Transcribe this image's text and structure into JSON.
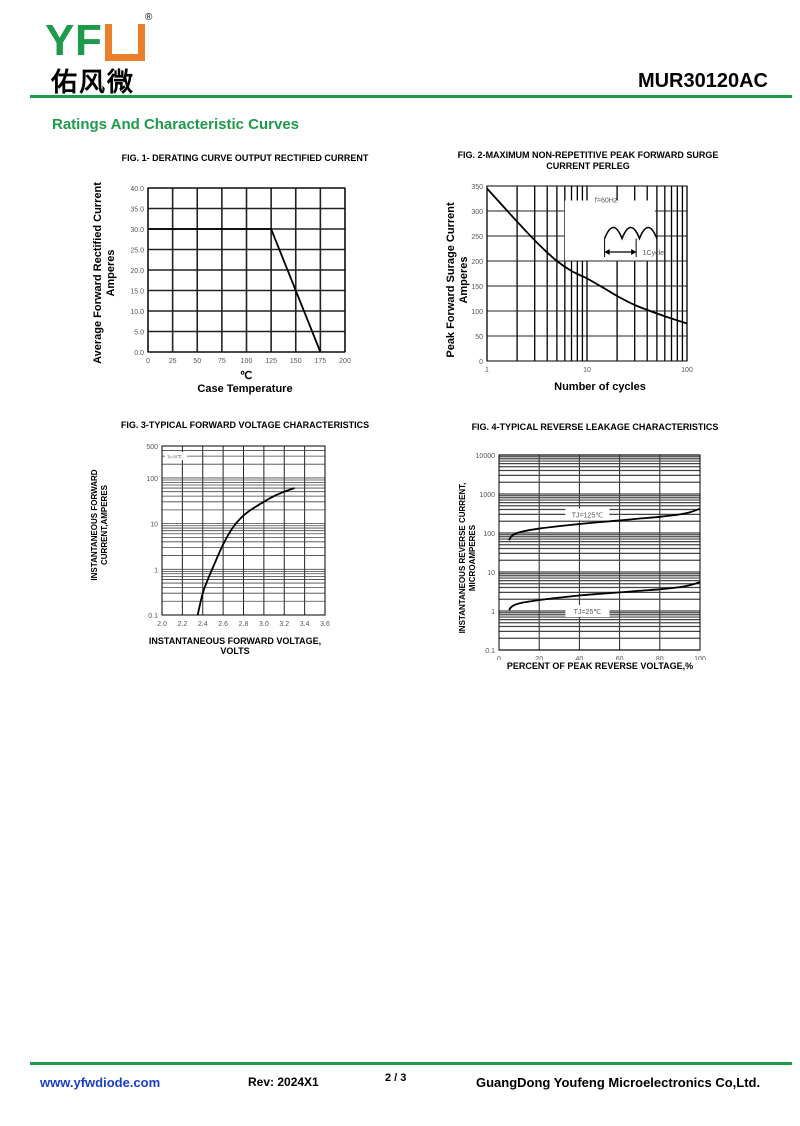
{
  "header": {
    "logo_text": "YFW",
    "logo_cn": "佑风微",
    "registered": "®",
    "part_number": "MUR30120AC",
    "brand_color": "#1e9a4a",
    "accent_color": "#ea7e2a"
  },
  "section_title": "Ratings And Characteristic Curves",
  "chart_data": [
    {
      "id": "fig1",
      "type": "line",
      "title": "FIG. 1- DERATING CURVE OUTPUT RECTIFIED CURRENT",
      "ylabel_lines": [
        "Average Forward Rectified Current",
        "Amperes"
      ],
      "xunit": "℃",
      "xlabel": "Case Temperature",
      "xscale": "linear",
      "yscale": "linear",
      "xlim": [
        0,
        200
      ],
      "ylim": [
        0,
        40
      ],
      "grid": true,
      "xticks": [
        0,
        25,
        50,
        75,
        100,
        125,
        150,
        175,
        200
      ],
      "xtick_labels": [
        "0",
        "25",
        "50",
        "75",
        "100",
        "125",
        "150",
        "175",
        "200"
      ],
      "yticks": [
        0,
        5,
        10,
        15,
        20,
        25,
        30,
        35,
        40
      ],
      "ytick_labels": [
        "0.0",
        "5.0",
        "10.0",
        "15.0",
        "20.0",
        "25.0",
        "30.0",
        "35.0",
        "40.0"
      ],
      "series": [
        {
          "x": [
            0,
            125,
            175
          ],
          "y": [
            30,
            30,
            0
          ]
        }
      ]
    },
    {
      "id": "fig2",
      "type": "line",
      "title": "FIG. 2-MAXIMUM NON-REPETITIVE PEAK FORWARD SURGE CURRENT PERLEG",
      "ylabel_lines": [
        "Peak Forward Surage Current",
        "Amperes"
      ],
      "xlabel": "Number of cycles",
      "xscale": "log",
      "yscale": "linear",
      "xlim": [
        1,
        100
      ],
      "ylim": [
        0,
        350
      ],
      "grid": true,
      "xticks": [
        1,
        10,
        100
      ],
      "xtick_labels": [
        "1",
        "10",
        "100"
      ],
      "yticks": [
        0,
        50,
        100,
        150,
        200,
        250,
        300,
        350
      ],
      "ytick_labels": [
        "0",
        "50",
        "100",
        "150",
        "200",
        "250",
        "300",
        "350"
      ],
      "annotations": [
        "f=60Hz",
        "1Cycle"
      ],
      "series": [
        {
          "x": [
            1,
            1.6,
            2.5,
            3.5,
            5,
            7,
            10,
            15,
            20,
            30,
            50,
            70,
            100
          ],
          "y": [
            345,
            300,
            258,
            228,
            200,
            180,
            165,
            145,
            130,
            112,
            95,
            85,
            75
          ]
        }
      ]
    },
    {
      "id": "fig3",
      "type": "line",
      "title": "FIG. 3-TYPICAL FORWARD VOLTAGE CHARACTERISTICS",
      "ylabel_lines": [
        "INSTANTANEOUS FORWARD",
        "CURRENT,AMPERES"
      ],
      "xlabel_lines": [
        "INSTANTANEOUS FORWARD VOLTAGE,",
        "VOLTS"
      ],
      "xscale": "linear",
      "yscale": "log",
      "xlim": [
        2.0,
        3.6
      ],
      "ylim": [
        0.1,
        500
      ],
      "grid": true,
      "xticks": [
        2.0,
        2.2,
        2.4,
        2.6,
        2.8,
        3.0,
        3.2,
        3.4,
        3.6
      ],
      "xtick_labels": [
        "2.0",
        "2.2",
        "2.4",
        "2.6",
        "2.8",
        "3.0",
        "3.2",
        "3.4",
        "3.6"
      ],
      "yticks": [
        0.1,
        1,
        10,
        100,
        500
      ],
      "ytick_labels": [
        "0.1",
        "1",
        "10",
        "100",
        "500"
      ],
      "legend": "Tj=25℃",
      "legend_position": "top-left",
      "series": [
        {
          "name": "Tj=25℃",
          "x": [
            2.35,
            2.4,
            2.45,
            2.5,
            2.6,
            2.7,
            2.8,
            2.9,
            3.0,
            3.1,
            3.2,
            3.3
          ],
          "y": [
            0.1,
            0.3,
            0.6,
            1.1,
            3.5,
            8.5,
            15,
            22,
            30,
            40,
            50,
            60
          ]
        }
      ]
    },
    {
      "id": "fig4",
      "type": "line",
      "title": "FIG. 4-TYPICAL REVERSE LEAKAGE CHARACTERISTICS",
      "ylabel_lines": [
        "INSTANTANEOUS REVERSE CURRENT,",
        "MICROAMPERES"
      ],
      "xlabel": "PERCENT OF PEAK REVERSE VOLTAGE,%",
      "xscale": "linear",
      "yscale": "log",
      "xlim": [
        0,
        100
      ],
      "ylim": [
        0.1,
        10000
      ],
      "grid": true,
      "xticks": [
        0,
        20,
        40,
        60,
        80,
        100
      ],
      "xtick_labels": [
        "0",
        "20",
        "40",
        "60",
        "80",
        "100"
      ],
      "yticks": [
        0.1,
        1,
        10,
        100,
        1000,
        10000
      ],
      "ytick_labels": [
        "0.1",
        "1",
        "10",
        "100",
        "1000",
        "10000"
      ],
      "series": [
        {
          "name": "TJ=125℃",
          "x": [
            5,
            6,
            8,
            12,
            20,
            30,
            40,
            50,
            60,
            70,
            80,
            90,
            95,
            100
          ],
          "y": [
            65,
            80,
            95,
            110,
            130,
            150,
            170,
            190,
            210,
            235,
            260,
            300,
            340,
            420
          ]
        },
        {
          "name": "TJ=25℃",
          "x": [
            5,
            6,
            8,
            12,
            20,
            30,
            40,
            50,
            60,
            70,
            80,
            90,
            95,
            100
          ],
          "y": [
            1.05,
            1.25,
            1.45,
            1.65,
            1.9,
            2.2,
            2.5,
            2.75,
            3.0,
            3.3,
            3.6,
            4.1,
            4.6,
            5.5
          ]
        }
      ]
    }
  ],
  "footer": {
    "website": "www.yfwdiode.com",
    "revision": "Rev: 2024X1",
    "page": "2 / 3",
    "company": "GuangDong Youfeng Microelectronics Co,Ltd."
  }
}
